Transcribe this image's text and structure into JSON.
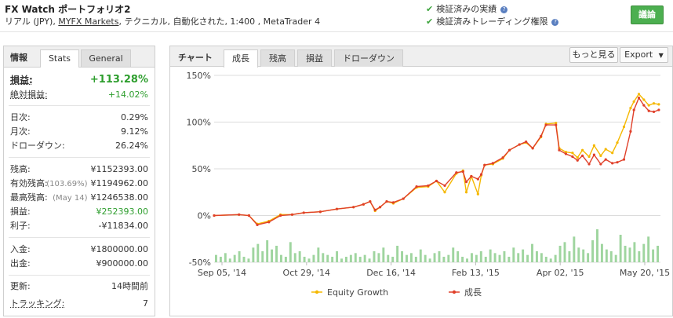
{
  "header": {
    "title": "FX Watch ポートフォリオ2",
    "subtitle_prefix": "リアル (JPY),",
    "broker_link": "MYFX Markets",
    "subtitle_suffix": ", テクニカル, 自動化された, 1:400 , MetaTrader 4",
    "verified": [
      "検証済みの実績",
      "検証済みトレーディング権限"
    ],
    "discuss_button": "議論"
  },
  "stats_panel": {
    "tabs": [
      "情報",
      "Stats",
      "General"
    ],
    "gain_label": "損益:",
    "gain_value": "+113.28%",
    "abs_gain_label": "絶対損益:",
    "abs_gain_value": "+14.02%",
    "daily_label": "日次:",
    "daily_value": "0.29%",
    "monthly_label": "月次:",
    "monthly_value": "9.12%",
    "drawdown_label": "ドローダウン:",
    "drawdown_value": "26.24%",
    "balance_label": "残高:",
    "balance_value": "¥1152393.00",
    "equity_label": "有効残高:",
    "equity_sub": "(103.69%)",
    "equity_value": "¥1194962.00",
    "highest_label": "最高残高:",
    "highest_sub": "(May 14)",
    "highest_value": "¥1246538.00",
    "profit_label": "損益:",
    "profit_value": "¥252393.00",
    "interest_label": "利子:",
    "interest_value": "-¥11834.00",
    "deposits_label": "入金:",
    "deposits_value": "¥1800000.00",
    "withdrawals_label": "出金:",
    "withdrawals_value": "¥900000.00",
    "updated_label": "更新:",
    "updated_value": "14時間前",
    "tracking_label": "トラッキング:",
    "tracking_value": "7"
  },
  "chart_panel": {
    "tabs": [
      "チャート",
      "成長",
      "残高",
      "損益",
      "ドローダウン"
    ],
    "more_button": "もっと見る",
    "export_button": "Export"
  },
  "chart_data": {
    "type": "line",
    "title": "",
    "xlabel": "",
    "ylabel": "",
    "y_ticks": [
      "150%",
      "100%",
      "50%",
      "0%",
      "-50%"
    ],
    "x_ticks": [
      "Sep 05, '14",
      "Oct 29, '14",
      "Dec 16, '14",
      "Feb 13, '15",
      "Apr 02, '15",
      "May 20, '15"
    ],
    "ylim": [
      -50,
      150
    ],
    "x_range": [
      "2014-09-05",
      "2015-06-01"
    ],
    "legend_position": "bottom",
    "series": [
      {
        "name": "Equity Growth",
        "color": "#f5b800",
        "points": [
          [
            "2014-09-05",
            0
          ],
          [
            "2014-09-20",
            1
          ],
          [
            "2014-09-26",
            0
          ],
          [
            "2014-10-01",
            -9
          ],
          [
            "2014-10-08",
            -6
          ],
          [
            "2014-10-15",
            1
          ],
          [
            "2014-10-22",
            1
          ],
          [
            "2014-10-29",
            3
          ],
          [
            "2014-11-08",
            4
          ],
          [
            "2014-11-18",
            7
          ],
          [
            "2014-11-28",
            9
          ],
          [
            "2014-12-04",
            12
          ],
          [
            "2014-12-08",
            15
          ],
          [
            "2014-12-11",
            5
          ],
          [
            "2014-12-14",
            9
          ],
          [
            "2014-12-18",
            15
          ],
          [
            "2014-12-22",
            13
          ],
          [
            "2014-12-28",
            18
          ],
          [
            "2015-01-05",
            30
          ],
          [
            "2015-01-12",
            31
          ],
          [
            "2015-01-17",
            37
          ],
          [
            "2015-01-22",
            25
          ],
          [
            "2015-01-29",
            45
          ],
          [
            "2015-02-02",
            48
          ],
          [
            "2015-02-04",
            25
          ],
          [
            "2015-02-07",
            42
          ],
          [
            "2015-02-11",
            23
          ],
          [
            "2015-02-13",
            43
          ],
          [
            "2015-02-15",
            54
          ],
          [
            "2015-02-20",
            55
          ],
          [
            "2015-02-26",
            61
          ],
          [
            "2015-03-02",
            70
          ],
          [
            "2015-03-08",
            76
          ],
          [
            "2015-03-12",
            78
          ],
          [
            "2015-03-16",
            72
          ],
          [
            "2015-03-21",
            84
          ],
          [
            "2015-03-24",
            98
          ],
          [
            "2015-03-30",
            99
          ],
          [
            "2015-04-01",
            72
          ],
          [
            "2015-04-05",
            68
          ],
          [
            "2015-04-09",
            67
          ],
          [
            "2015-04-12",
            62
          ],
          [
            "2015-04-15",
            70
          ],
          [
            "2015-04-19",
            63
          ],
          [
            "2015-04-22",
            75
          ],
          [
            "2015-04-26",
            64
          ],
          [
            "2015-04-29",
            71
          ],
          [
            "2015-05-03",
            67
          ],
          [
            "2015-05-06",
            78
          ],
          [
            "2015-05-10",
            95
          ],
          [
            "2015-05-14",
            115
          ],
          [
            "2015-05-16",
            122
          ],
          [
            "2015-05-19",
            130
          ],
          [
            "2015-05-22",
            124
          ],
          [
            "2015-05-25",
            118
          ],
          [
            "2015-05-28",
            120
          ],
          [
            "2015-05-31",
            119
          ]
        ]
      },
      {
        "name": "成長",
        "color": "#e0402a",
        "points": [
          [
            "2014-09-05",
            0
          ],
          [
            "2014-09-20",
            1
          ],
          [
            "2014-09-26",
            0
          ],
          [
            "2014-10-01",
            -10
          ],
          [
            "2014-10-08",
            -7
          ],
          [
            "2014-10-15",
            0
          ],
          [
            "2014-10-22",
            1
          ],
          [
            "2014-10-29",
            3
          ],
          [
            "2014-11-08",
            4
          ],
          [
            "2014-11-18",
            7
          ],
          [
            "2014-11-28",
            9
          ],
          [
            "2014-12-04",
            12
          ],
          [
            "2014-12-08",
            15
          ],
          [
            "2014-12-11",
            6
          ],
          [
            "2014-12-14",
            9
          ],
          [
            "2014-12-18",
            15
          ],
          [
            "2014-12-22",
            14
          ],
          [
            "2014-12-28",
            18
          ],
          [
            "2015-01-05",
            31
          ],
          [
            "2015-01-12",
            32
          ],
          [
            "2015-01-17",
            37
          ],
          [
            "2015-01-22",
            32
          ],
          [
            "2015-01-29",
            46
          ],
          [
            "2015-02-02",
            47
          ],
          [
            "2015-02-04",
            36
          ],
          [
            "2015-02-07",
            42
          ],
          [
            "2015-02-11",
            39
          ],
          [
            "2015-02-13",
            44
          ],
          [
            "2015-02-15",
            54
          ],
          [
            "2015-02-20",
            56
          ],
          [
            "2015-02-26",
            62
          ],
          [
            "2015-03-02",
            70
          ],
          [
            "2015-03-08",
            76
          ],
          [
            "2015-03-12",
            79
          ],
          [
            "2015-03-16",
            72
          ],
          [
            "2015-03-21",
            85
          ],
          [
            "2015-03-24",
            97
          ],
          [
            "2015-03-30",
            97
          ],
          [
            "2015-04-01",
            70
          ],
          [
            "2015-04-05",
            66
          ],
          [
            "2015-04-09",
            63
          ],
          [
            "2015-04-12",
            59
          ],
          [
            "2015-04-15",
            64
          ],
          [
            "2015-04-19",
            55
          ],
          [
            "2015-04-22",
            65
          ],
          [
            "2015-04-26",
            55
          ],
          [
            "2015-04-29",
            60
          ],
          [
            "2015-05-03",
            56
          ],
          [
            "2015-05-06",
            57
          ],
          [
            "2015-05-10",
            60
          ],
          [
            "2015-05-14",
            90
          ],
          [
            "2015-05-16",
            113
          ],
          [
            "2015-05-19",
            126
          ],
          [
            "2015-05-22",
            118
          ],
          [
            "2015-05-25",
            112
          ],
          [
            "2015-05-28",
            111
          ],
          [
            "2015-05-31",
            113
          ]
        ]
      }
    ],
    "volume_bars": {
      "color": "#9fd59f",
      "values": [
        4,
        3,
        5,
        2,
        4,
        6,
        3,
        2,
        8,
        10,
        6,
        12,
        7,
        9,
        4,
        3,
        11,
        5,
        6,
        3,
        2,
        4,
        8,
        5,
        4,
        3,
        6,
        2,
        3,
        4,
        5,
        3,
        4,
        2,
        6,
        5,
        8,
        4,
        3,
        9,
        6,
        4,
        5,
        3,
        7,
        4,
        2,
        5,
        6,
        3,
        4,
        8,
        6,
        3,
        2,
        5,
        4,
        6,
        3,
        7,
        5,
        4,
        6,
        3,
        8,
        5,
        7,
        4,
        10,
        6,
        5,
        3,
        2,
        4,
        9,
        11,
        6,
        14,
        8,
        7,
        5,
        12,
        18,
        10,
        7,
        6,
        4,
        15,
        9,
        8,
        11,
        6,
        10,
        14,
        7,
        9
      ]
    }
  }
}
